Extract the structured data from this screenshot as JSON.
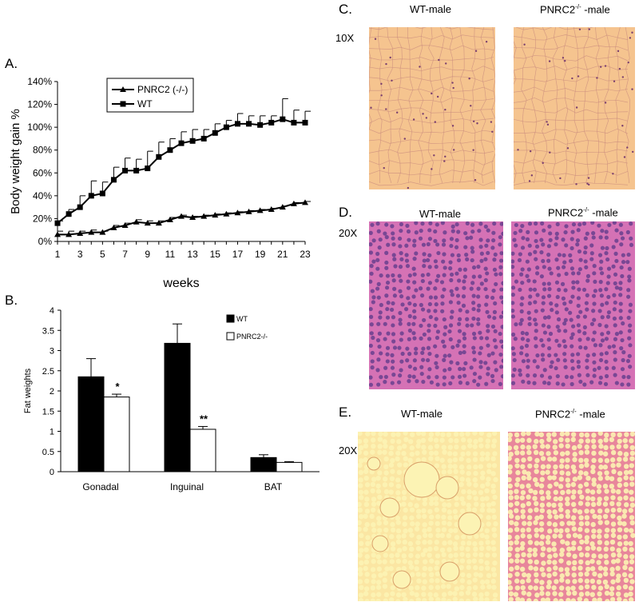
{
  "panels": {
    "a": "A.",
    "b": "B.",
    "c": "C.",
    "d": "D.",
    "e": "E."
  },
  "chart_data": [
    {
      "type": "line",
      "panel": "A.",
      "ylabel": "Body weight gain %",
      "xlabel": "weeks",
      "ylim": [
        0,
        140
      ],
      "xlim": [
        1,
        23
      ],
      "y_ticks": [
        "0%",
        "20%",
        "40%",
        "60%",
        "80%",
        "100%",
        "120%",
        "140%"
      ],
      "x_ticks": [
        "1",
        "3",
        "5",
        "7",
        "9",
        "11",
        "13",
        "15",
        "17",
        "19",
        "21",
        "23"
      ],
      "legend_position": "top-left",
      "series": [
        {
          "name": "PNRC2 (-/-)",
          "marker": "triangle",
          "x": [
            1,
            2,
            3,
            4,
            5,
            6,
            7,
            8,
            9,
            10,
            11,
            12,
            13,
            14,
            15,
            16,
            17,
            18,
            19,
            20,
            21,
            22,
            23
          ],
          "values": [
            6,
            6,
            7,
            8,
            8,
            12,
            14,
            17,
            16,
            16,
            19,
            22,
            21,
            22,
            23,
            24,
            25,
            26,
            27,
            28,
            30,
            33,
            34
          ],
          "errors": [
            3,
            3,
            2,
            2,
            1,
            2,
            2,
            2,
            2,
            2,
            2,
            1,
            1,
            1,
            1,
            1,
            1,
            1,
            1,
            1,
            1,
            1,
            1
          ]
        },
        {
          "name": "WT",
          "marker": "square",
          "x": [
            1,
            2,
            3,
            4,
            5,
            6,
            7,
            8,
            9,
            10,
            11,
            12,
            13,
            14,
            15,
            16,
            17,
            18,
            19,
            20,
            21,
            22,
            23
          ],
          "values": [
            16,
            24,
            30,
            40,
            42,
            54,
            62,
            62,
            64,
            74,
            80,
            86,
            88,
            90,
            95,
            100,
            103,
            103,
            102,
            104,
            107,
            104,
            104
          ],
          "errors": [
            2,
            4,
            10,
            13,
            10,
            11,
            11,
            10,
            15,
            13,
            10,
            10,
            10,
            8,
            8,
            6,
            9,
            7,
            8,
            6,
            18,
            11,
            10
          ]
        }
      ]
    },
    {
      "type": "bar",
      "panel": "B.",
      "ylabel": "Fat weights",
      "xlabel": "",
      "ylim": [
        0,
        4
      ],
      "y_ticks": [
        "0",
        "0.5",
        "1",
        "1.5",
        "2",
        "2.5",
        "3",
        "3.5",
        "4"
      ],
      "categories": [
        "Gonadal",
        "Inguinal",
        "BAT"
      ],
      "legend_position": "top-right",
      "series": [
        {
          "name": "WT",
          "color": "#000000",
          "values": [
            2.35,
            3.18,
            0.35
          ],
          "errors": [
            0.45,
            0.48,
            0.07
          ]
        },
        {
          "name": "PNRC2-/-",
          "color": "#ffffff",
          "values": [
            1.85,
            1.05,
            0.23
          ],
          "errors": [
            0.07,
            0.07,
            0.02
          ]
        }
      ],
      "annotations": [
        "*",
        "**"
      ]
    }
  ],
  "micrographs": {
    "c": {
      "left_label": "WT-male",
      "right_label_prefix": "PNRC2",
      "right_label_sup": "-/-",
      "right_label_suffix": " -male",
      "magnification": "10X"
    },
    "d": {
      "left_label": "WT-male",
      "right_label_prefix": "PNRC2",
      "right_label_sup": "-/-",
      "right_label_suffix": " -male",
      "magnification": "20X"
    },
    "e": {
      "left_label": "WT-male",
      "right_label_prefix": "PNRC2",
      "right_label_sup": "-/-",
      "right_label_suffix": " -male",
      "magnification": "20X"
    }
  },
  "colors": {
    "adipose_bg": "#f5c48f",
    "adipose_line": "#c98a7e",
    "liver_bg": "#d572b5",
    "liver_nucleus": "#5a3a8a",
    "e_wt_bg": "#fbe6a3",
    "e_ko_bg": "#e8869b",
    "e_cell": "#fcf3b4"
  }
}
